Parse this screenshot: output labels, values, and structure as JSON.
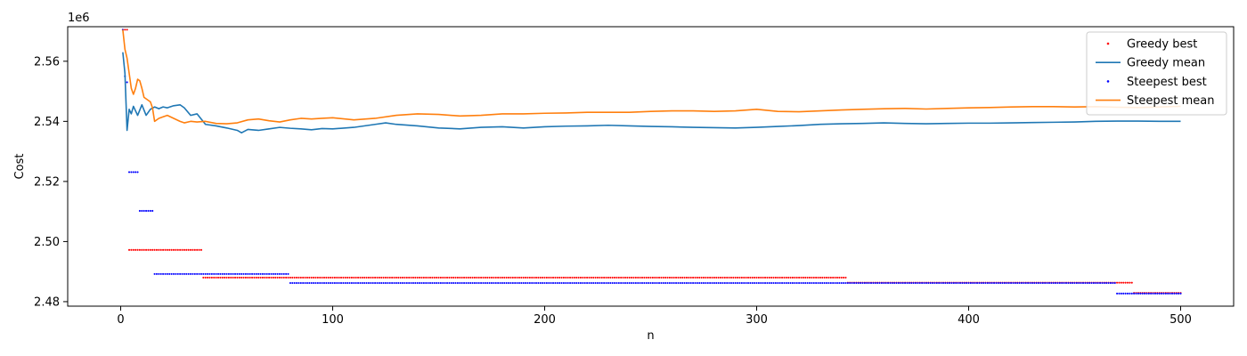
{
  "chart_data": {
    "type": "line",
    "xlabel": "n",
    "ylabel": "Cost",
    "y_offset_label": "1e6",
    "xlim": [
      -25,
      525
    ],
    "ylim": [
      2.4785,
      2.5715
    ],
    "x_ticks": [
      0,
      100,
      200,
      300,
      400,
      500
    ],
    "x_tick_labels": [
      "0",
      "100",
      "200",
      "300",
      "400",
      "500"
    ],
    "y_ticks": [
      2.48,
      2.5,
      2.52,
      2.54,
      2.56
    ],
    "y_tick_labels": [
      "2.48",
      "2.50",
      "2.52",
      "2.54",
      "2.56"
    ],
    "grid": false,
    "legend_position": "top-right",
    "series": [
      {
        "name": "Greedy best",
        "kind": "markers",
        "color": "#ff0000",
        "steps": [
          {
            "from": 1,
            "to": 3,
            "value": 2.5705
          },
          {
            "from": 4,
            "to": 38,
            "value": 2.4972
          },
          {
            "from": 39,
            "to": 342,
            "value": 2.488
          },
          {
            "from": 343,
            "to": 477,
            "value": 2.4863
          },
          {
            "from": 478,
            "to": 500,
            "value": 2.4829
          }
        ]
      },
      {
        "name": "Greedy mean",
        "kind": "line",
        "color": "#1f77b4",
        "x": [
          1,
          2,
          3,
          4,
          5,
          6,
          8,
          10,
          12,
          14,
          16,
          18,
          20,
          22,
          25,
          28,
          30,
          33,
          36,
          40,
          45,
          50,
          55,
          57,
          60,
          65,
          70,
          75,
          80,
          85,
          90,
          95,
          100,
          110,
          120,
          125,
          130,
          140,
          150,
          160,
          170,
          180,
          190,
          200,
          210,
          220,
          230,
          240,
          250,
          260,
          270,
          280,
          290,
          300,
          310,
          320,
          330,
          340,
          350,
          360,
          370,
          380,
          390,
          400,
          410,
          420,
          430,
          440,
          450,
          460,
          470,
          480,
          490,
          500
        ],
        "values": [
          2.563,
          2.556,
          2.537,
          2.544,
          2.5425,
          2.545,
          2.542,
          2.5455,
          2.542,
          2.544,
          2.5448,
          2.5442,
          2.5448,
          2.5445,
          2.5452,
          2.5455,
          2.5445,
          2.542,
          2.5425,
          2.539,
          2.5385,
          2.5378,
          2.537,
          2.5362,
          2.5373,
          2.537,
          2.5375,
          2.538,
          2.5377,
          2.5375,
          2.5372,
          2.5376,
          2.5375,
          2.538,
          2.539,
          2.5395,
          2.539,
          2.5385,
          2.5378,
          2.5375,
          2.538,
          2.5382,
          2.5378,
          2.5382,
          2.5384,
          2.5385,
          2.5387,
          2.5385,
          2.5383,
          2.5382,
          2.538,
          2.5379,
          2.5378,
          2.538,
          2.5383,
          2.5386,
          2.539,
          2.5392,
          2.5393,
          2.5395,
          2.5393,
          2.5392,
          2.5393,
          2.5394,
          2.5394,
          2.5395,
          2.5396,
          2.5397,
          2.5398,
          2.54,
          2.5401,
          2.5401,
          2.54,
          2.54
        ]
      },
      {
        "name": "Steepest best",
        "kind": "markers",
        "color": "#0000ff",
        "steps": [
          {
            "from": 1,
            "to": 1,
            "value": 2.5705
          },
          {
            "from": 2,
            "to": 2,
            "value": 2.555
          },
          {
            "from": 3,
            "to": 3,
            "value": 2.553
          },
          {
            "from": 4,
            "to": 8,
            "value": 2.5231
          },
          {
            "from": 9,
            "to": 15,
            "value": 2.5102
          },
          {
            "from": 16,
            "to": 79,
            "value": 2.4892
          },
          {
            "from": 80,
            "to": 469,
            "value": 2.4862
          },
          {
            "from": 470,
            "to": 500,
            "value": 2.4827
          }
        ]
      },
      {
        "name": "Steepest mean",
        "kind": "line",
        "color": "#ff7f0e",
        "x": [
          1,
          2,
          3,
          4,
          5,
          6,
          7,
          8,
          9,
          10,
          11,
          12,
          13,
          14,
          15,
          16,
          18,
          20,
          22,
          25,
          28,
          30,
          33,
          36,
          40,
          45,
          50,
          55,
          60,
          65,
          70,
          75,
          80,
          85,
          90,
          95,
          100,
          110,
          120,
          130,
          140,
          150,
          160,
          170,
          180,
          190,
          200,
          210,
          220,
          230,
          240,
          250,
          260,
          270,
          280,
          290,
          300,
          310,
          320,
          330,
          340,
          350,
          360,
          370,
          380,
          390,
          400,
          410,
          420,
          430,
          440,
          450,
          460,
          470,
          480,
          490,
          500
        ],
        "values": [
          2.5705,
          2.564,
          2.561,
          2.556,
          2.551,
          2.549,
          2.551,
          2.554,
          2.5535,
          2.551,
          2.548,
          2.5475,
          2.547,
          2.5465,
          2.5445,
          2.54,
          2.541,
          2.5415,
          2.542,
          2.541,
          2.54,
          2.5395,
          2.54,
          2.5398,
          2.54,
          2.5393,
          2.5392,
          2.5395,
          2.5405,
          2.5408,
          2.5402,
          2.5398,
          2.5405,
          2.541,
          2.5408,
          2.541,
          2.5412,
          2.5405,
          2.541,
          2.542,
          2.5425,
          2.5423,
          2.5418,
          2.542,
          2.5425,
          2.5425,
          2.5427,
          2.5428,
          2.543,
          2.543,
          2.543,
          2.5433,
          2.5435,
          2.5435,
          2.5433,
          2.5435,
          2.544,
          2.5433,
          2.5432,
          2.5435,
          2.5438,
          2.544,
          2.5442,
          2.5443,
          2.5441,
          2.5443,
          2.5445,
          2.5446,
          2.5448,
          2.5449,
          2.5449,
          2.5448,
          2.5449,
          2.5447,
          2.5446,
          2.5448,
          2.545
        ]
      }
    ]
  }
}
